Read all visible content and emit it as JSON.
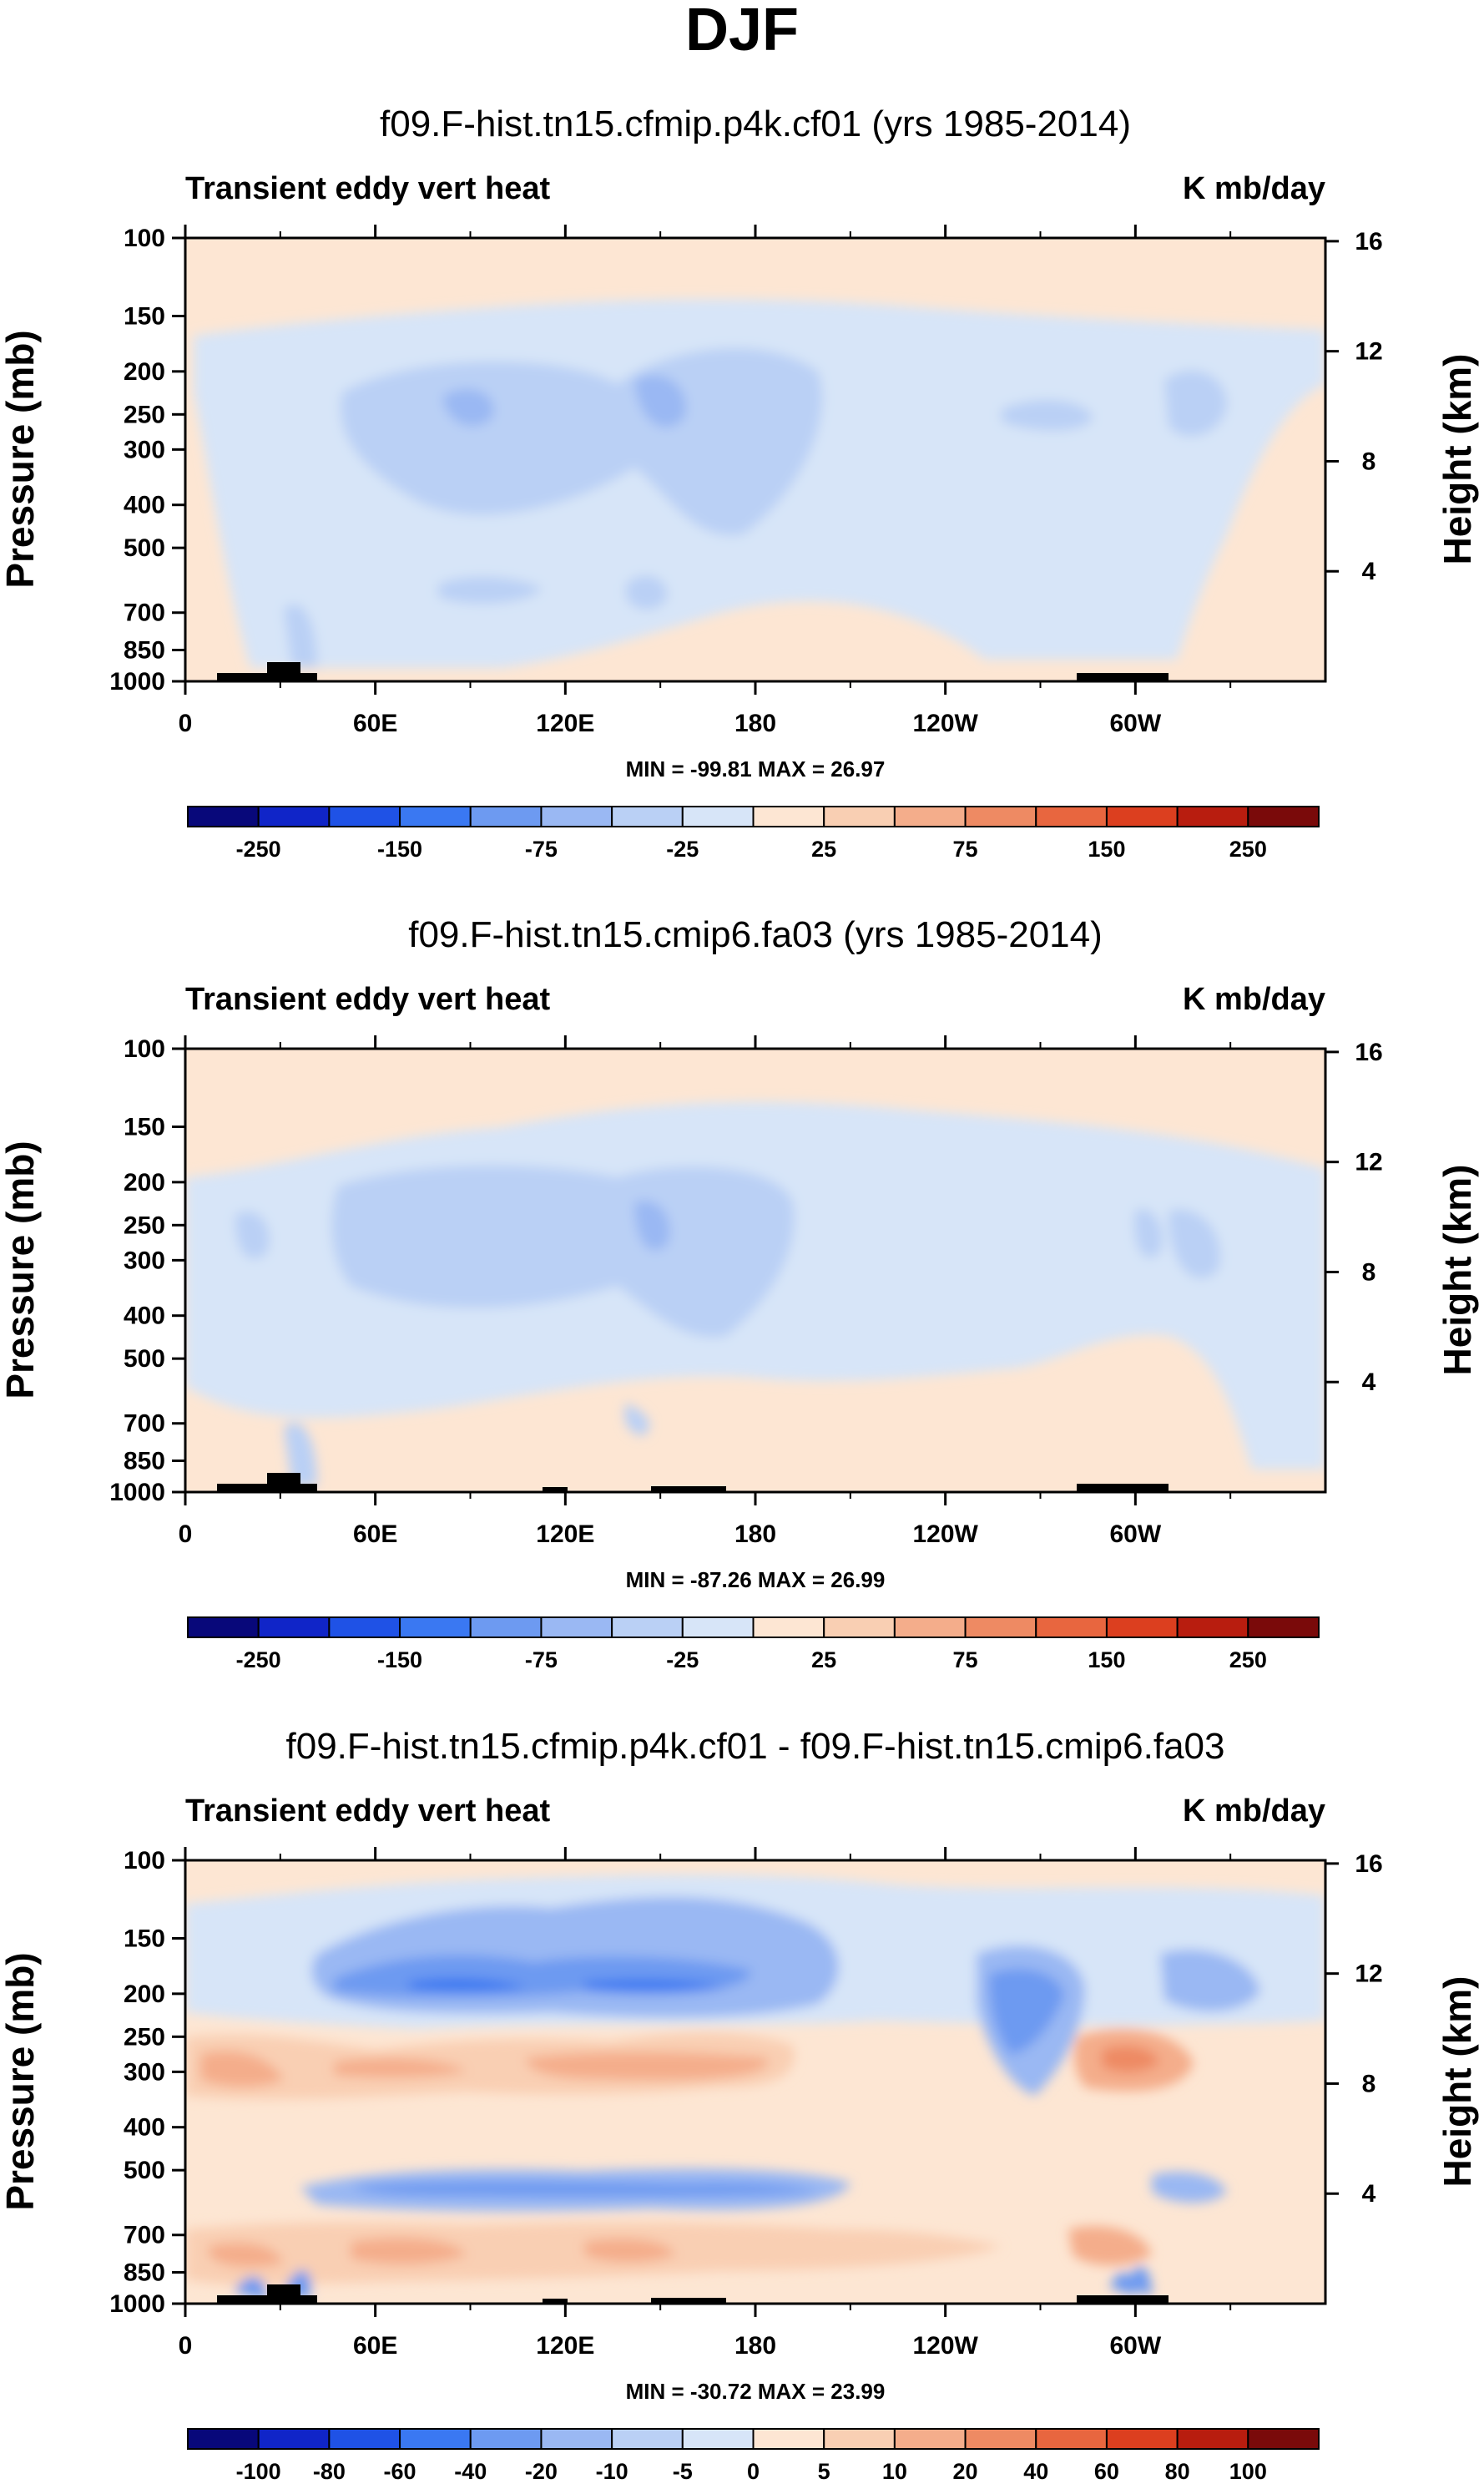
{
  "figure_title": "DJF",
  "colors": {
    "neg": [
      "#08087a",
      "#1025c8",
      "#1f52e6",
      "#3a78f2",
      "#6d9af1",
      "#9ab8f3",
      "#bad0f5",
      "#d7e5f8"
    ],
    "pos": [
      "#fde6d3",
      "#f9cfb3",
      "#f4ad8b",
      "#ee8a63",
      "#e8663f",
      "#dc3f1f",
      "#b81d0f",
      "#7a0a0a"
    ],
    "land": "#000000"
  },
  "chart_data": [
    {
      "type": "contour",
      "title": "f09.F-hist.tn15.cfmip.p4k.cf01 (yrs 1985-2014)",
      "left_label": "Transient eddy vert heat",
      "right_label": "K mb/day",
      "ylabel": "Pressure (mb)",
      "ylabel_right": "Height (km)",
      "y_ticks": [
        "100",
        "150",
        "200",
        "250",
        "300",
        "400",
        "500",
        "700",
        "850",
        "1000"
      ],
      "y_ticks_right": [
        "16",
        "12",
        "8",
        "4"
      ],
      "x_ticks": [
        "0",
        "60E",
        "120E",
        "180",
        "120W",
        "60W"
      ],
      "minmax": "MIN = -99.81   MAX =  26.97",
      "colorbar_labels": [
        "-250",
        "-150",
        "-75",
        "-25",
        "25",
        "75",
        "150",
        "250"
      ],
      "contour_levels": [
        -300,
        -250,
        -200,
        -150,
        -100,
        -75,
        -50,
        -25,
        0,
        25,
        50,
        75,
        100,
        150,
        200,
        250,
        300
      ],
      "min": -99.81,
      "max": 26.97
    },
    {
      "type": "contour",
      "title": "f09.F-hist.tn15.cmip6.fa03 (yrs 1985-2014)",
      "left_label": "Transient eddy vert heat",
      "right_label": "K mb/day",
      "ylabel": "Pressure (mb)",
      "ylabel_right": "Height (km)",
      "y_ticks": [
        "100",
        "150",
        "200",
        "250",
        "300",
        "400",
        "500",
        "700",
        "850",
        "1000"
      ],
      "y_ticks_right": [
        "16",
        "12",
        "8",
        "4"
      ],
      "x_ticks": [
        "0",
        "60E",
        "120E",
        "180",
        "120W",
        "60W"
      ],
      "minmax": "MIN = -87.26   MAX =  26.99",
      "colorbar_labels": [
        "-250",
        "-150",
        "-75",
        "-25",
        "25",
        "75",
        "150",
        "250"
      ],
      "contour_levels": [
        -300,
        -250,
        -200,
        -150,
        -100,
        -75,
        -50,
        -25,
        0,
        25,
        50,
        75,
        100,
        150,
        200,
        250,
        300
      ],
      "min": -87.26,
      "max": 26.99
    },
    {
      "type": "contour",
      "title": "f09.F-hist.tn15.cfmip.p4k.cf01 - f09.F-hist.tn15.cmip6.fa03",
      "left_label": "Transient eddy vert heat",
      "right_label": "K mb/day",
      "ylabel": "Pressure (mb)",
      "ylabel_right": "Height (km)",
      "y_ticks": [
        "100",
        "150",
        "200",
        "250",
        "300",
        "400",
        "500",
        "700",
        "850",
        "1000"
      ],
      "y_ticks_right": [
        "16",
        "12",
        "8",
        "4"
      ],
      "x_ticks": [
        "0",
        "60E",
        "120E",
        "180",
        "120W",
        "60W"
      ],
      "minmax": "MIN = -30.72   MAX =  23.99",
      "colorbar_labels": [
        "-100",
        "-80",
        "-60",
        "-40",
        "-20",
        "-10",
        "-5",
        "0",
        "5",
        "10",
        "20",
        "40",
        "60",
        "80",
        "100"
      ],
      "contour_levels": [
        -120,
        -100,
        -80,
        -60,
        -40,
        -20,
        -10,
        -5,
        0,
        5,
        10,
        20,
        40,
        60,
        80,
        100,
        120
      ],
      "min": -30.72,
      "max": 23.99
    }
  ]
}
